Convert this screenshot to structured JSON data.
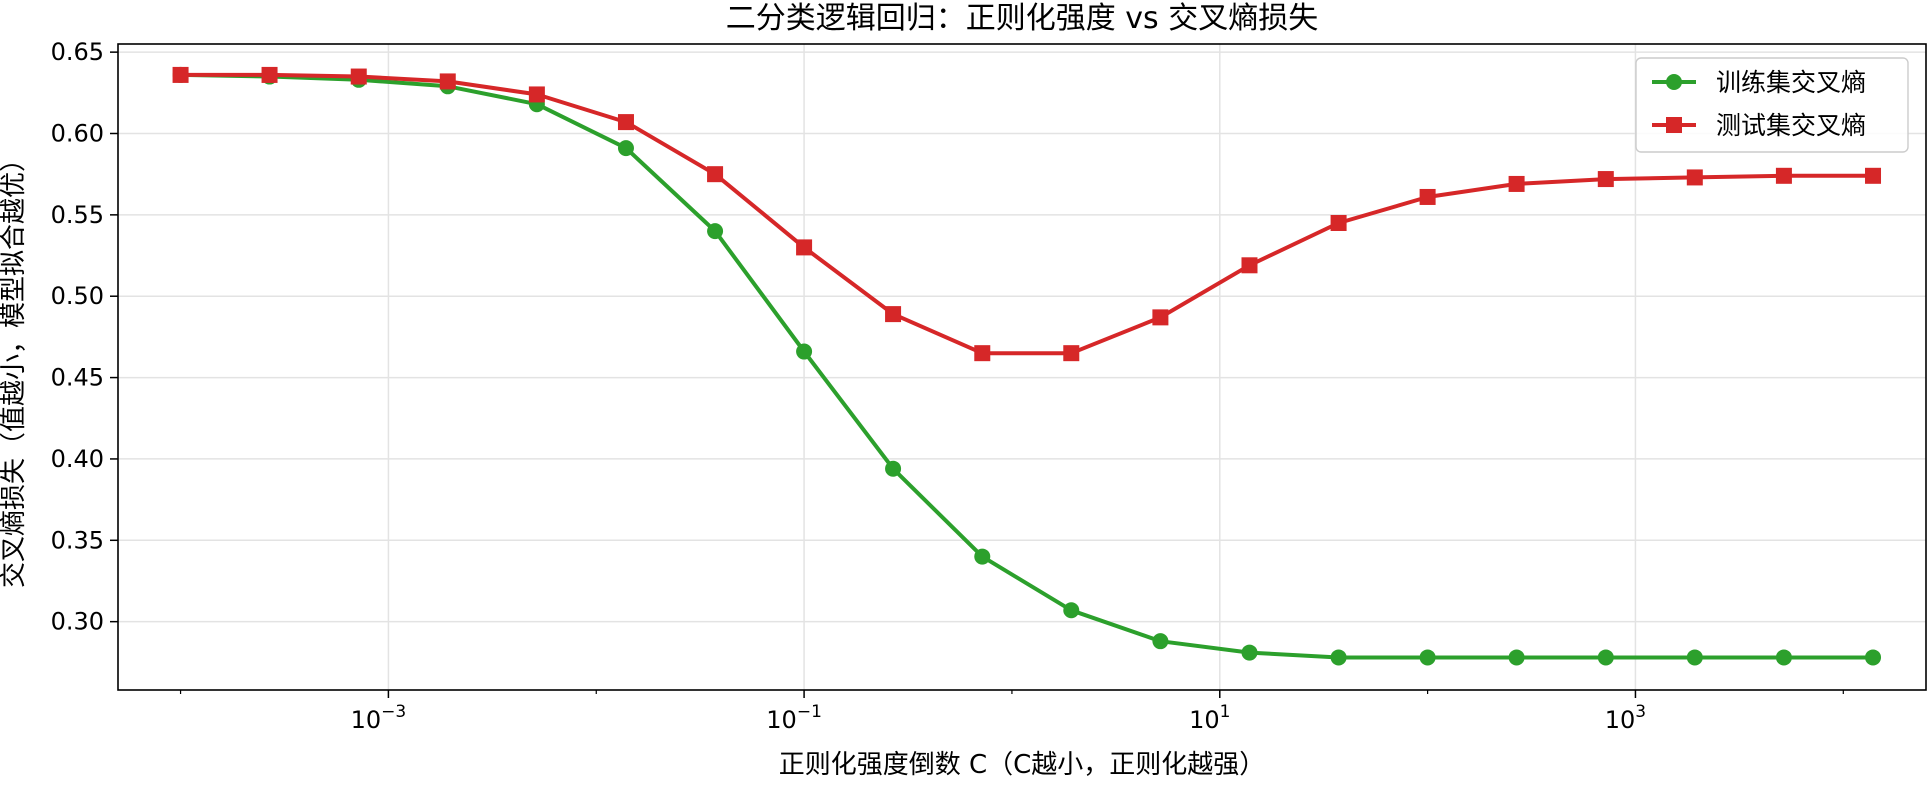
{
  "chart_data": {
    "type": "line",
    "title": "二分类逻辑回归：正则化强度 vs 交叉熵损失",
    "xlabel": "正则化强度倒数 C（C越小，正则化越强）",
    "ylabel": "交叉熵损失（值越小，模型拟合越优）",
    "xscale": "log",
    "xlim": [
      5e-05,
      25000
    ],
    "ylim": [
      0.258,
      0.655
    ],
    "grid": true,
    "legend_position": "top-right",
    "x": [
      0.0001,
      0.000268,
      0.00072,
      0.00193,
      0.00518,
      0.0139,
      0.0373,
      0.1,
      0.268,
      0.72,
      1.93,
      5.18,
      13.9,
      37.3,
      100,
      268,
      720,
      1930,
      5180,
      13900
    ],
    "yticks": [
      "0.30",
      "0.35",
      "0.40",
      "0.45",
      "0.50",
      "0.55",
      "0.60",
      "0.65"
    ],
    "ytick_values": [
      0.3,
      0.35,
      0.4,
      0.45,
      0.5,
      0.55,
      0.6,
      0.65
    ],
    "xticks": [
      {
        "value": 0.001,
        "base": "10",
        "exp": "−3"
      },
      {
        "value": 0.1,
        "base": "10",
        "exp": "−1"
      },
      {
        "value": 10,
        "base": "10",
        "exp": "1"
      },
      {
        "value": 1000,
        "base": "10",
        "exp": "3"
      }
    ],
    "series": [
      {
        "name": "训练集交叉熵",
        "color": "#2ca02c",
        "marker": "circle",
        "values": [
          0.636,
          0.635,
          0.633,
          0.629,
          0.618,
          0.591,
          0.54,
          0.466,
          0.394,
          0.34,
          0.307,
          0.288,
          0.281,
          0.278,
          0.278,
          0.278,
          0.278,
          0.278,
          0.278,
          0.278
        ]
      },
      {
        "name": "测试集交叉熵",
        "color": "#d62728",
        "marker": "square",
        "values": [
          0.636,
          0.636,
          0.635,
          0.632,
          0.624,
          0.607,
          0.575,
          0.53,
          0.489,
          0.465,
          0.465,
          0.487,
          0.519,
          0.545,
          0.561,
          0.569,
          0.572,
          0.573,
          0.574,
          0.574
        ]
      }
    ]
  }
}
